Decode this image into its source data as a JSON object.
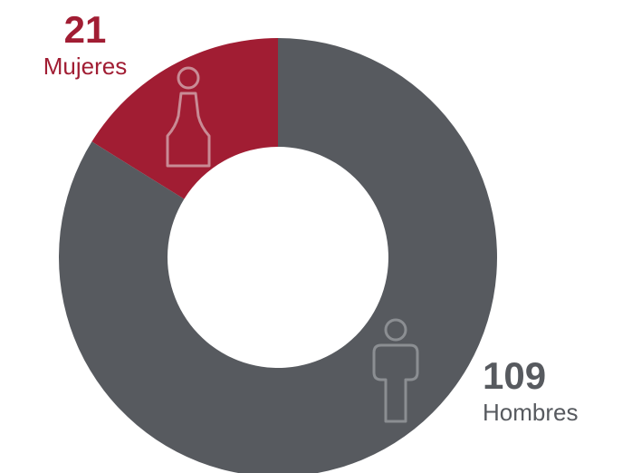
{
  "chart_data": {
    "type": "pie",
    "categories": [
      "Mujeres",
      "Hombres"
    ],
    "values": [
      21,
      109
    ],
    "colors": {
      "Mujeres": "#a11d33",
      "Hombres": "#575a5f"
    },
    "icons": {
      "Mujeres": "female-person-icon",
      "Hombres": "male-person-icon"
    },
    "title": ""
  },
  "labels": {
    "mujeres": {
      "value": "21",
      "category": "Mujeres"
    },
    "hombres": {
      "value": "109",
      "category": "Hombres"
    }
  }
}
